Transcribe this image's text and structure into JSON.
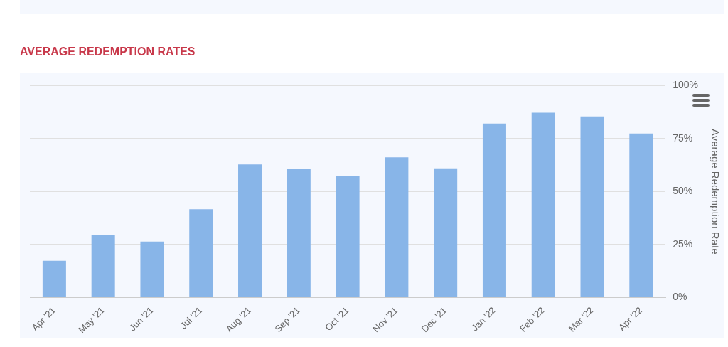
{
  "chart_data": {
    "type": "bar",
    "title": "AVERAGE REDEMPTION RATES",
    "ylabel": "Average Redemption Rate",
    "categories": [
      "Apr '21",
      "May '21",
      "Jun '21",
      "Jul '21",
      "Aug '21",
      "Sep '21",
      "Oct '21",
      "Nov '21",
      "Dec '21",
      "Jan '22",
      "Feb '22",
      "Mar '22",
      "Apr '22"
    ],
    "values": [
      17.2,
      29.6,
      26.3,
      41.6,
      62.8,
      60.6,
      57.3,
      66.1,
      60.9,
      82.1,
      87.2,
      85.4,
      77.4
    ],
    "color": "#88b5e8",
    "ylim": [
      0,
      100
    ],
    "yticks": [
      {
        "value": 0,
        "label": "0%"
      },
      {
        "value": 25,
        "label": "25%"
      },
      {
        "value": 50,
        "label": "50%"
      },
      {
        "value": 75,
        "label": "75%"
      },
      {
        "value": 100,
        "label": "100%"
      }
    ],
    "grid": "y",
    "legend": false
  }
}
